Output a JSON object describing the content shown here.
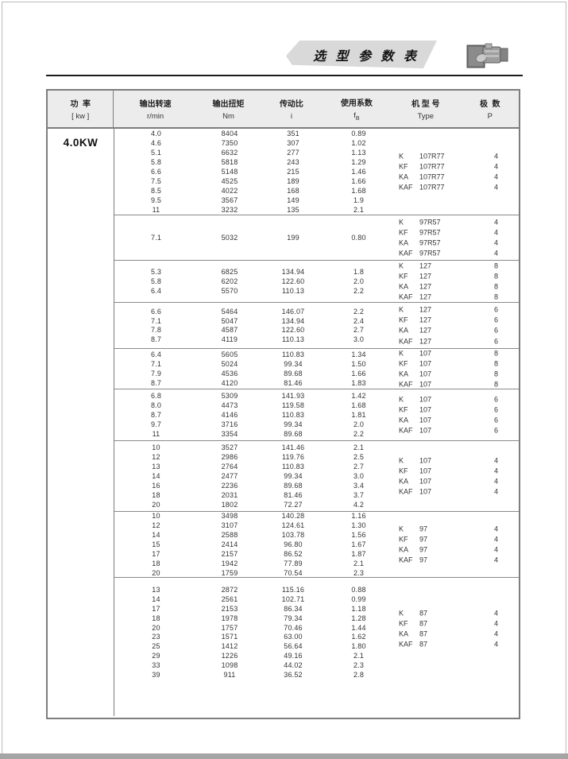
{
  "page": {
    "title_banner": "选 型 参 数 表",
    "power_label": "4.0KW"
  },
  "table": {
    "header": {
      "power_l1": "功  率",
      "power_l2": "[ kw ]",
      "speed_l1": "输出转速",
      "speed_l2": "r/min",
      "torque_l1": "输出扭矩",
      "torque_l2": "Nm",
      "ratio_l1": "传动比",
      "ratio_l2": "i",
      "factor_l1": "使用系数",
      "factor_l2": "f",
      "factor_l2_sub": "B",
      "type_l1": "机 型 号",
      "type_l2": "Type",
      "poles_l1": "极  数",
      "poles_l2": "P"
    },
    "sections": [
      {
        "rows": [
          [
            "4.0",
            "8404",
            "351",
            "0.89"
          ],
          [
            "4.6",
            "7350",
            "307",
            "1.02"
          ],
          [
            "5.1",
            "6632",
            "277",
            "1.13"
          ],
          [
            "5.8",
            "5818",
            "243",
            "1.29"
          ],
          [
            "6.6",
            "5148",
            "215",
            "1.46"
          ],
          [
            "7.5",
            "4525",
            "189",
            "1.66"
          ],
          [
            "8.5",
            "4022",
            "168",
            "1.68"
          ],
          [
            "9.5",
            "3567",
            "149",
            "1.9"
          ],
          [
            "11",
            "3232",
            "135",
            "2.1"
          ]
        ],
        "types": [
          {
            "prefix": "K",
            "model": "107R77",
            "poles": "4"
          },
          {
            "prefix": "KF",
            "model": "107R77",
            "poles": "4"
          },
          {
            "prefix": "KA",
            "model": "107R77",
            "poles": "4"
          },
          {
            "prefix": "KAF",
            "model": "107R77",
            "poles": "4"
          }
        ]
      },
      {
        "rows": [
          [
            "7.1",
            "5032",
            "199",
            "0.80"
          ]
        ],
        "types": [
          {
            "prefix": "K",
            "model": "97R57",
            "poles": "4"
          },
          {
            "prefix": "KF",
            "model": "97R57",
            "poles": "4"
          },
          {
            "prefix": "KA",
            "model": "97R57",
            "poles": "4"
          },
          {
            "prefix": "KAF",
            "model": "97R57",
            "poles": "4"
          }
        ]
      },
      {
        "rows": [
          [
            "5.3",
            "6825",
            "134.94",
            "1.8"
          ],
          [
            "5.8",
            "6202",
            "122.60",
            "2.0"
          ],
          [
            "6.4",
            "5570",
            "110.13",
            "2.2"
          ]
        ],
        "types": [
          {
            "prefix": "K",
            "model": "127",
            "poles": "8"
          },
          {
            "prefix": "KF",
            "model": "127",
            "poles": "8"
          },
          {
            "prefix": "KA",
            "model": "127",
            "poles": "8"
          },
          {
            "prefix": "KAF",
            "model": "127",
            "poles": "8"
          }
        ]
      },
      {
        "rows": [
          [
            "6.6",
            "5464",
            "146.07",
            "2.2"
          ],
          [
            "7.1",
            "5047",
            "134.94",
            "2.4"
          ],
          [
            "7.8",
            "4587",
            "122.60",
            "2.7"
          ],
          [
            "8.7",
            "4119",
            "110.13",
            "3.0"
          ]
        ],
        "types": [
          {
            "prefix": "K",
            "model": "127",
            "poles": "6"
          },
          {
            "prefix": "KF",
            "model": "127",
            "poles": "6"
          },
          {
            "prefix": "KA",
            "model": "127",
            "poles": "6"
          },
          {
            "prefix": "KAF",
            "model": "127",
            "poles": "6"
          }
        ]
      },
      {
        "rows": [
          [
            "6.4",
            "5605",
            "110.83",
            "1.34"
          ],
          [
            "7.1",
            "5024",
            "99.34",
            "1.50"
          ],
          [
            "7.9",
            "4536",
            "89.68",
            "1.66"
          ],
          [
            "8.7",
            "4120",
            "81.46",
            "1.83"
          ]
        ],
        "types": [
          {
            "prefix": "K",
            "model": "107",
            "poles": "8"
          },
          {
            "prefix": "KF",
            "model": "107",
            "poles": "8"
          },
          {
            "prefix": "KA",
            "model": "107",
            "poles": "8"
          },
          {
            "prefix": "KAF",
            "model": "107",
            "poles": "8"
          }
        ]
      },
      {
        "rows": [
          [
            "6.8",
            "5309",
            "141.93",
            "1.42"
          ],
          [
            "8.0",
            "4473",
            "119.58",
            "1.68"
          ],
          [
            "8.7",
            "4146",
            "110.83",
            "1.81"
          ],
          [
            "9.7",
            "3716",
            "99.34",
            "2.0"
          ],
          [
            "11",
            "3354",
            "89.68",
            "2.2"
          ]
        ],
        "types": [
          {
            "prefix": "K",
            "model": "107",
            "poles": "6"
          },
          {
            "prefix": "KF",
            "model": "107",
            "poles": "6"
          },
          {
            "prefix": "KA",
            "model": "107",
            "poles": "6"
          },
          {
            "prefix": "KAF",
            "model": "107",
            "poles": "6"
          }
        ]
      },
      {
        "rows": [
          [
            "10",
            "3527",
            "141.46",
            "2.1"
          ],
          [
            "12",
            "2986",
            "119.76",
            "2.5"
          ],
          [
            "13",
            "2764",
            "110.83",
            "2.7"
          ],
          [
            "14",
            "2477",
            "99.34",
            "3.0"
          ],
          [
            "16",
            "2236",
            "89.68",
            "3.4"
          ],
          [
            "18",
            "2031",
            "81.46",
            "3.7"
          ],
          [
            "20",
            "1802",
            "72.27",
            "4.2"
          ]
        ],
        "types": [
          {
            "prefix": "K",
            "model": "107",
            "poles": "4"
          },
          {
            "prefix": "KF",
            "model": "107",
            "poles": "4"
          },
          {
            "prefix": "KA",
            "model": "107",
            "poles": "4"
          },
          {
            "prefix": "KAF",
            "model": "107",
            "poles": "4"
          }
        ]
      },
      {
        "rows": [
          [
            "10",
            "3498",
            "140.28",
            "1.16"
          ],
          [
            "12",
            "3107",
            "124.61",
            "1.30"
          ],
          [
            "14",
            "2588",
            "103.78",
            "1.56"
          ],
          [
            "15",
            "2414",
            "96.80",
            "1.67"
          ],
          [
            "17",
            "2157",
            "86.52",
            "1.87"
          ],
          [
            "18",
            "1942",
            "77.89",
            "2.1"
          ],
          [
            "20",
            "1759",
            "70.54",
            "2.3"
          ]
        ],
        "types": [
          {
            "prefix": "K",
            "model": "97",
            "poles": "4"
          },
          {
            "prefix": "KF",
            "model": "97",
            "poles": "4"
          },
          {
            "prefix": "KA",
            "model": "97",
            "poles": "4"
          },
          {
            "prefix": "KAF",
            "model": "97",
            "poles": "4"
          }
        ]
      },
      {
        "rows": [
          [
            "13",
            "2872",
            "115.16",
            "0.88"
          ],
          [
            "14",
            "2561",
            "102.71",
            "0.99"
          ],
          [
            "17",
            "2153",
            "86.34",
            "1.18"
          ],
          [
            "18",
            "1978",
            "79.34",
            "1.28"
          ],
          [
            "20",
            "1757",
            "70.46",
            "1.44"
          ],
          [
            "23",
            "1571",
            "63.00",
            "1.62"
          ],
          [
            "25",
            "1412",
            "56.64",
            "1.80"
          ],
          [
            "29",
            "1226",
            "49.16",
            "2.1"
          ],
          [
            "33",
            "1098",
            "44.02",
            "2.3"
          ],
          [
            "39",
            "911",
            "36.52",
            "2.8"
          ]
        ],
        "types": [
          {
            "prefix": "K",
            "model": "87",
            "poles": "4"
          },
          {
            "prefix": "KF",
            "model": "87",
            "poles": "4"
          },
          {
            "prefix": "KA",
            "model": "87",
            "poles": "4"
          },
          {
            "prefix": "KAF",
            "model": "87",
            "poles": "4"
          }
        ]
      }
    ]
  }
}
